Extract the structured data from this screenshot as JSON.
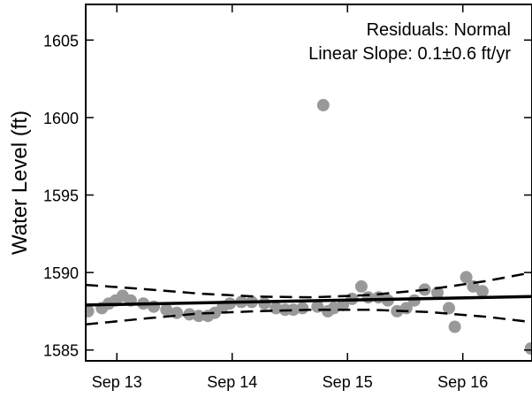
{
  "chart_data": {
    "type": "scatter",
    "title": "",
    "xlabel": "",
    "ylabel": "Water Level (ft)",
    "annotations": [
      "Residuals:  Normal",
      "Linear Slope:  0.1±0.6 ft/yr"
    ],
    "x_tick_labels": [
      "Sep 13",
      "Sep 14",
      "Sep 15",
      "Sep 16"
    ],
    "x_tick_values": [
      2013.0,
      2014.0,
      2015.0,
      2016.0
    ],
    "y_ticks": [
      1585,
      1590,
      1595,
      1600,
      1605
    ],
    "xlim": [
      2012.73,
      2016.6
    ],
    "ylim": [
      1584.3,
      1607.3
    ],
    "grid": false,
    "legend": "none",
    "series": [
      {
        "kind": "points",
        "color": "#999999",
        "x": [
          2012.75,
          2012.87,
          2012.93,
          2012.99,
          2013.05,
          2013.12,
          2013.23,
          2013.32,
          2013.43,
          2013.52,
          2013.63,
          2013.71,
          2013.79,
          2013.85,
          2013.92,
          2013.98,
          2014.08,
          2014.17,
          2014.28,
          2014.38,
          2014.46,
          2014.53,
          2014.61,
          2014.74,
          2014.79,
          2014.83,
          2014.88,
          2014.96,
          2015.04,
          2015.12,
          2015.18,
          2015.27,
          2015.35,
          2015.43,
          2015.51,
          2015.58,
          2015.67,
          2015.78,
          2015.88,
          2015.93,
          2016.03,
          2016.09,
          2016.17,
          2016.59
        ],
        "y": [
          1587.5,
          1587.7,
          1588.0,
          1588.2,
          1588.5,
          1588.2,
          1588.0,
          1587.8,
          1587.6,
          1587.4,
          1587.3,
          1587.2,
          1587.2,
          1587.4,
          1587.8,
          1588.0,
          1588.1,
          1588.1,
          1588.0,
          1587.7,
          1587.6,
          1587.6,
          1587.7,
          1587.8,
          1600.8,
          1587.5,
          1587.7,
          1587.9,
          1588.3,
          1589.1,
          1588.4,
          1588.4,
          1588.2,
          1587.5,
          1587.7,
          1588.2,
          1588.9,
          1588.7,
          1587.7,
          1586.5,
          1589.7,
          1589.1,
          1588.8,
          1585.1
        ]
      },
      {
        "kind": "fit",
        "style": "solid",
        "color": "#000000",
        "x": [
          2012.73,
          2016.6
        ],
        "y": [
          1587.9,
          1588.45
        ]
      },
      {
        "kind": "confidence-upper",
        "style": "dashed",
        "color": "#000000",
        "x": [
          2012.73,
          2013.2,
          2013.7,
          2014.2,
          2014.7,
          2015.2,
          2015.7,
          2016.2,
          2016.6
        ],
        "y": [
          1589.2,
          1588.95,
          1588.65,
          1588.45,
          1588.4,
          1588.55,
          1588.9,
          1589.45,
          1590.0
        ]
      },
      {
        "kind": "confidence-lower",
        "style": "dashed",
        "color": "#000000",
        "x": [
          2012.73,
          2013.2,
          2013.7,
          2014.2,
          2014.7,
          2015.2,
          2015.7,
          2016.2,
          2016.6
        ],
        "y": [
          1586.65,
          1587.0,
          1587.35,
          1587.5,
          1587.6,
          1587.6,
          1587.45,
          1587.15,
          1586.8
        ]
      }
    ]
  }
}
